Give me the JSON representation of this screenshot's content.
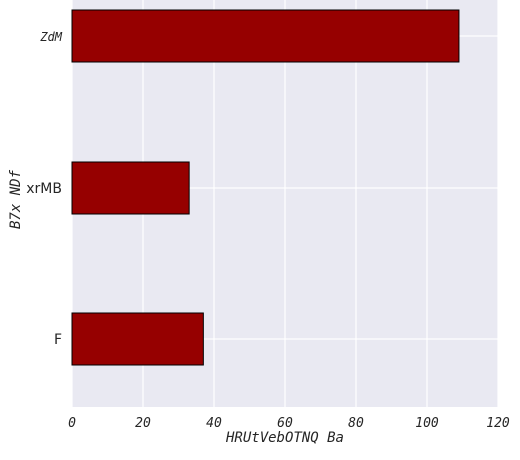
{
  "chart_data": {
    "type": "bar",
    "orientation": "horizontal",
    "categories": [
      "ZdM",
      "xrMB",
      "F"
    ],
    "values": [
      109,
      33,
      37
    ],
    "xlabel": "HRUtVebOTNQ Ba",
    "ylabel": "B7x NDf",
    "xlim": [
      0,
      120
    ],
    "xticks": [
      0,
      20,
      40,
      60,
      80,
      100,
      120
    ],
    "grid": true,
    "colors": {
      "bar": "#960000",
      "bar_edge": "#000000",
      "plot_background": "#e9e9f2",
      "grid": "#ffffff"
    }
  }
}
